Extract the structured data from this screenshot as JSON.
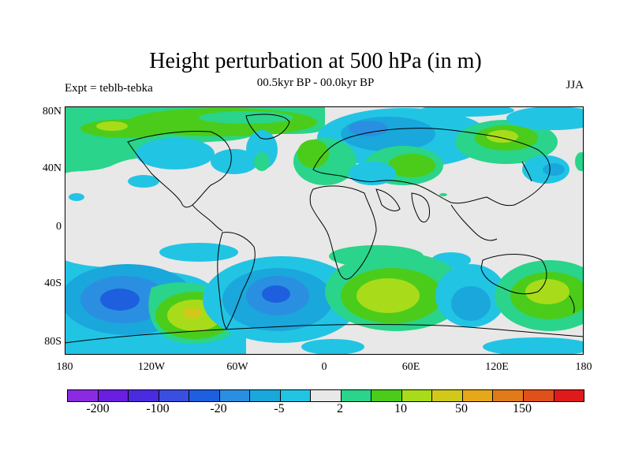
{
  "title": "Height perturbation at 500 hPa (in m)",
  "experiment": "Expt = teblb-tebka",
  "period": "00.5kyr BP - 00.0kyr BP",
  "season": "JJA",
  "lat_labels": [
    "80N",
    "40N",
    "0",
    "40S",
    "80S"
  ],
  "lon_labels": [
    "180",
    "120W",
    "60W",
    "0",
    "60E",
    "120E",
    "180"
  ],
  "colorbar": {
    "colors": [
      "#8a2be2",
      "#6a1ee0",
      "#4b2be0",
      "#3a4fe0",
      "#1e5fe0",
      "#2a8fe0",
      "#1aa7dc",
      "#22c4e4",
      "#e8e8e8",
      "#2ad48a",
      "#4bcc1a",
      "#a8dc1a",
      "#d2c81a",
      "#e6a81a",
      "#e07a1a",
      "#e0501a",
      "#e01a1a"
    ],
    "tick_labels": [
      "-200",
      "-100",
      "-20",
      "-5",
      "2",
      "10",
      "50",
      "150"
    ]
  }
}
